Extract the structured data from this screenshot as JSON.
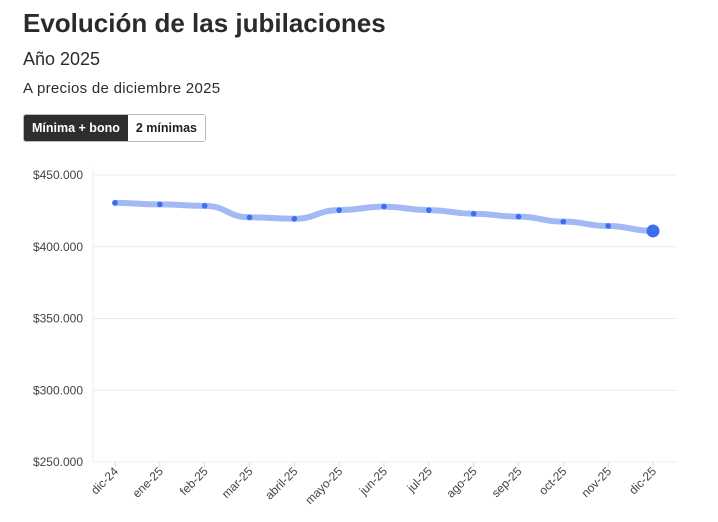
{
  "header": {
    "title": "Evolución de las jubilaciones",
    "subtitle": "Año 2025",
    "note": "A precios de diciembre 2025"
  },
  "toggle": {
    "options": [
      "Mínima + bono",
      "2 mínimas"
    ],
    "active": 0
  },
  "chart_data": {
    "type": "line",
    "title": "Evolución de las jubilaciones",
    "xlabel": "",
    "ylabel": "",
    "categories": [
      "dic-24",
      "ene-25",
      "feb-25",
      "mar-25",
      "abril-25",
      "mayo-25",
      "jun-25",
      "jul-25",
      "ago-25",
      "sep-25",
      "oct-25",
      "nov-25",
      "dic-25"
    ],
    "series": [
      {
        "name": "Mínima + bono",
        "values": [
          430600,
          429500,
          428500,
          420500,
          419500,
          425500,
          428000,
          425500,
          423000,
          421000,
          417500,
          414500,
          411000
        ]
      }
    ],
    "yticks": [
      250000,
      300000,
      350000,
      400000,
      450000
    ],
    "ytick_labels": [
      "$250.000",
      "$300.000",
      "$350.000",
      "$400.000",
      "$450.000"
    ],
    "ylim": [
      250000,
      450000
    ],
    "grid": true,
    "colors": {
      "line": "#a3b9f5",
      "point": "#3a6ff0"
    }
  }
}
